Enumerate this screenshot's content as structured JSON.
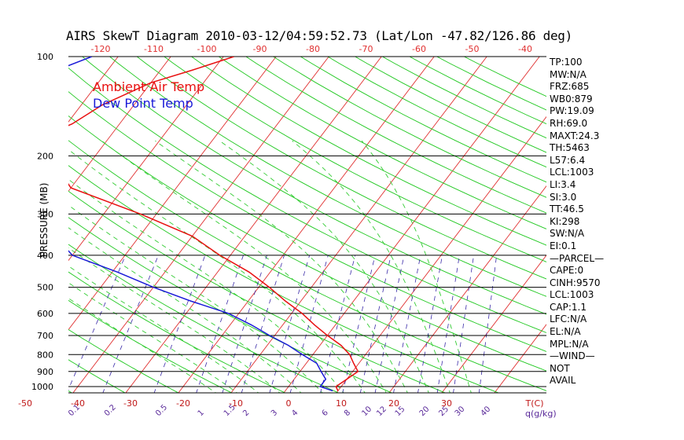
{
  "title": "AIRS SkewT Diagram 2010-03-12/04:59:52.73 (Lat/Lon -47.82/126.86 deg)",
  "legend": {
    "air": "Ambient Air Temp",
    "dew": "Dew Point Temp"
  },
  "colors": {
    "air": "#e81010",
    "dew": "#1a1ad8",
    "isotherm": "#e03030",
    "dry_adiabat": "#20c820",
    "moist_adiabat": "#33cc33",
    "mixing_ratio": "#3a2aa8",
    "axis_top": "#e03030",
    "axis_bottom": "#c01818",
    "mix_label": "#5a2a9a"
  },
  "stats": [
    "TP:100",
    "MW:N/A",
    "FRZ:685",
    "WB0:879",
    "PW:19.09",
    "RH:69.0",
    "MAXT:24.3",
    "TH:5463",
    "L57:6.4",
    "LCL:1003",
    "LI:3.4",
    "SI:3.0",
    "TT:46.5",
    "KI:298",
    "SW:N/A",
    "EI:0.1",
    "—PARCEL—",
    "CAPE:0",
    "CINH:9570",
    "LCL:1003",
    "CAP:1.1",
    "LFC:N/A",
    "EL:N/A",
    "MPL:N/A",
    "—WIND—",
    "NOT",
    "AVAIL"
  ],
  "chart_data": {
    "type": "line",
    "ylabel": "PRESSURE (MB)",
    "y_scale": "log",
    "ylim": [
      1050,
      100
    ],
    "pressure_ticks": [
      "100",
      "200",
      "300",
      "400",
      "500",
      "600",
      "700",
      "800",
      "900",
      "1000"
    ],
    "temp_ticks_top": [
      "-120",
      "-110",
      "-100",
      "-90",
      "-80",
      "-70",
      "-60",
      "-50",
      "-40"
    ],
    "temp_ticks_bottom": [
      "-50",
      "-40",
      "-30",
      "-20",
      "-10",
      "0",
      "10",
      "20",
      "30"
    ],
    "temp_unit": "T(C)",
    "mixing_ratio_labels": [
      "0.1",
      "0.2",
      "0.5",
      "1",
      "1.5",
      "2",
      "3",
      "4",
      "6",
      "8",
      "10",
      "12",
      "15",
      "20",
      "25",
      "30",
      "40"
    ],
    "mixing_ratio_unit": "q(g/kg)",
    "series": [
      {
        "name": "Ambient Air Temp",
        "points": [
          [
            100,
            -58
          ],
          [
            110,
            -64
          ],
          [
            120,
            -70
          ],
          [
            140,
            -76
          ],
          [
            160,
            -79
          ],
          [
            180,
            -84
          ],
          [
            200,
            -80
          ],
          [
            220,
            -75
          ],
          [
            250,
            -70
          ],
          [
            300,
            -53
          ],
          [
            350,
            -40
          ],
          [
            400,
            -32
          ],
          [
            450,
            -24
          ],
          [
            500,
            -18
          ],
          [
            550,
            -13
          ],
          [
            600,
            -8
          ],
          [
            650,
            -4
          ],
          [
            700,
            0
          ],
          [
            750,
            4
          ],
          [
            800,
            7
          ],
          [
            850,
            9
          ],
          [
            900,
            11
          ],
          [
            950,
            10
          ],
          [
            1000,
            9
          ],
          [
            1030,
            10
          ]
        ]
      },
      {
        "name": "Dew Point Temp",
        "points": [
          [
            100,
            -85
          ],
          [
            120,
            -94
          ],
          [
            150,
            -105
          ],
          [
            180,
            -101
          ],
          [
            200,
            -97
          ],
          [
            250,
            -84
          ],
          [
            300,
            -76
          ],
          [
            350,
            -66
          ],
          [
            400,
            -60
          ],
          [
            450,
            -49
          ],
          [
            500,
            -40
          ],
          [
            550,
            -31
          ],
          [
            600,
            -22
          ],
          [
            650,
            -16
          ],
          [
            700,
            -11
          ],
          [
            750,
            -6
          ],
          [
            800,
            -2
          ],
          [
            850,
            2
          ],
          [
            900,
            4
          ],
          [
            950,
            6
          ],
          [
            1000,
            6
          ],
          [
            1030,
            9
          ]
        ]
      }
    ]
  }
}
